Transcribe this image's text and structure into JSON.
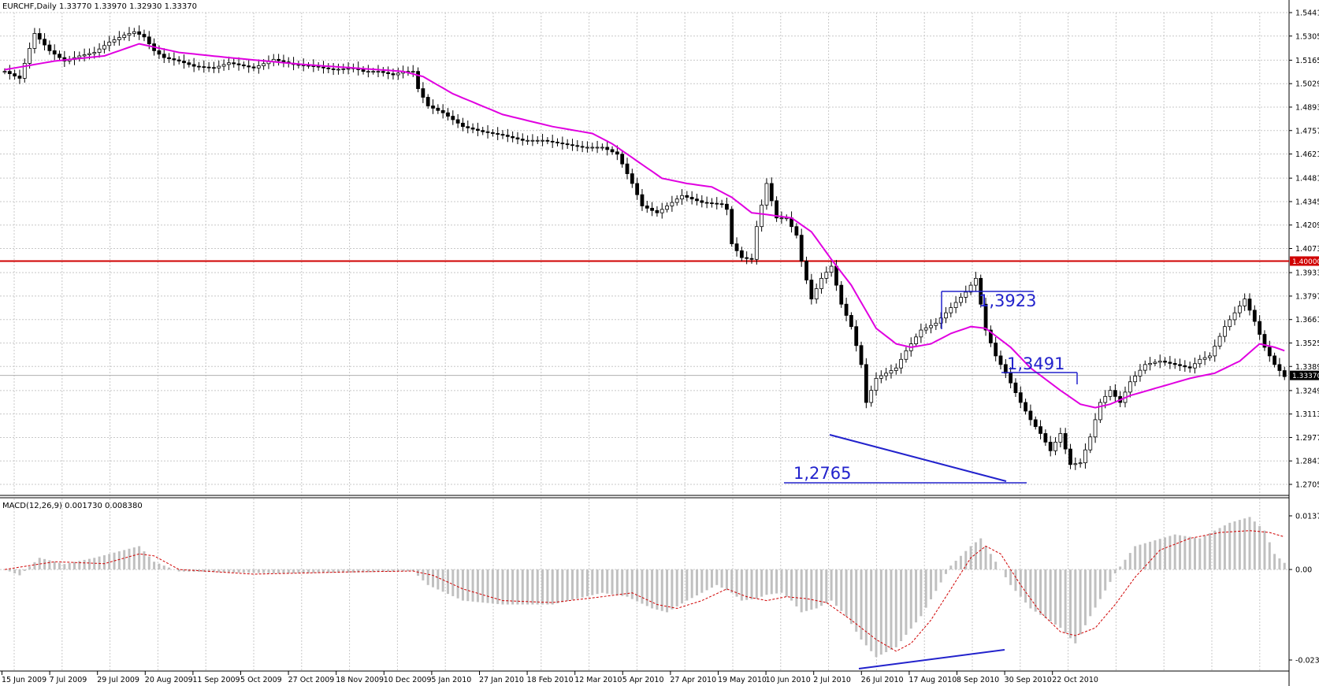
{
  "header": {
    "symbol_line": "EURCHF,Daily  1.33770 1.33970 1.32930 1.33370"
  },
  "macd": {
    "title": "MACD(12,26,9) 0.001730 0.008380"
  },
  "colors": {
    "background": "#ffffff",
    "grid": "#c0c0c0",
    "candle": "#000000",
    "ma": "#e000e0",
    "level": "#d00000",
    "annotation": "#2222cc",
    "hist": "#c0c0c0",
    "signal": "#d00000"
  },
  "annotations": {
    "high_label": "1,3923",
    "mid_label": "1,3491",
    "low_label": "1,2765"
  },
  "chart_data": [
    {
      "type": "candlestick",
      "title": "EURCHF,Daily",
      "ylim": [
        1.27,
        1.548
      ],
      "price_ticks": [
        "1.54410",
        "1.53050",
        "1.51650",
        "1.50290",
        "1.48930",
        "1.47570",
        "1.46210",
        "1.44810",
        "1.43450",
        "1.42090",
        "1.40730",
        "1.39330",
        "1.37970",
        "1.36610",
        "1.35250",
        "1.33890",
        "1.32490",
        "1.31130",
        "1.29770",
        "1.28410",
        "1.27050"
      ],
      "level_label": "1.40000",
      "current_label": "1.33370",
      "x_labels": [
        "15 Jun 2009",
        "7 Jul 2009",
        "29 Jul 2009",
        "20 Aug 2009",
        "11 Sep 2009",
        "5 Oct 2009",
        "27 Oct 2009",
        "18 Nov 2009",
        "10 Dec 2009",
        "5 Jan 2010",
        "27 Jan 2010",
        "18 Feb 2010",
        "12 Mar 2010",
        "5 Apr 2010",
        "27 Apr 2010",
        "19 May 2010",
        "10 Jun 2010",
        "2 Jul 2010",
        "26 Jul 2010",
        "17 Aug 2010",
        "8 Sep 2010",
        "30 Sep 2010",
        "22 Oct 2010"
      ],
      "close_path": [
        [
          0,
          1.51
        ],
        [
          3,
          1.506
        ],
        [
          6,
          1.532
        ],
        [
          9,
          1.522
        ],
        [
          12,
          1.516
        ],
        [
          15,
          1.519
        ],
        [
          18,
          1.521
        ],
        [
          21,
          1.527
        ],
        [
          24,
          1.531
        ],
        [
          26,
          1.533
        ],
        [
          28,
          1.53
        ],
        [
          30,
          1.522
        ],
        [
          32,
          1.518
        ],
        [
          35,
          1.516
        ],
        [
          38,
          1.513
        ],
        [
          42,
          1.512
        ],
        [
          45,
          1.515
        ],
        [
          50,
          1.512
        ],
        [
          54,
          1.517
        ],
        [
          58,
          1.514
        ],
        [
          62,
          1.513
        ],
        [
          66,
          1.511
        ],
        [
          70,
          1.512
        ],
        [
          72,
          1.51
        ],
        [
          75,
          1.51
        ],
        [
          78,
          1.508
        ],
        [
          80,
          1.51
        ],
        [
          82,
          1.51
        ],
        [
          83,
          1.5
        ],
        [
          85,
          1.49
        ],
        [
          88,
          1.486
        ],
        [
          92,
          1.478
        ],
        [
          96,
          1.475
        ],
        [
          100,
          1.473
        ],
        [
          104,
          1.47
        ],
        [
          108,
          1.47
        ],
        [
          112,
          1.468
        ],
        [
          116,
          1.466
        ],
        [
          120,
          1.466
        ],
        [
          123,
          1.462
        ],
        [
          126,
          1.445
        ],
        [
          128,
          1.432
        ],
        [
          131,
          1.428
        ],
        [
          133,
          1.432
        ],
        [
          136,
          1.438
        ],
        [
          140,
          1.434
        ],
        [
          144,
          1.433
        ],
        [
          145,
          1.43
        ],
        [
          146,
          1.41
        ],
        [
          148,
          1.402
        ],
        [
          150,
          1.401
        ],
        [
          151,
          1.42
        ],
        [
          153,
          1.445
        ],
        [
          155,
          1.425
        ],
        [
          157,
          1.425
        ],
        [
          159,
          1.415
        ],
        [
          160,
          1.4
        ],
        [
          162,
          1.378
        ],
        [
          164,
          1.39
        ],
        [
          166,
          1.397
        ],
        [
          168,
          1.375
        ],
        [
          170,
          1.362
        ],
        [
          172,
          1.34
        ],
        [
          173,
          1.318
        ],
        [
          175,
          1.332
        ],
        [
          177,
          1.335
        ],
        [
          179,
          1.338
        ],
        [
          181,
          1.348
        ],
        [
          184,
          1.36
        ],
        [
          187,
          1.364
        ],
        [
          190,
          1.373
        ],
        [
          193,
          1.382
        ],
        [
          195,
          1.39
        ],
        [
          197,
          1.36
        ],
        [
          199,
          1.345
        ],
        [
          201,
          1.335
        ],
        [
          204,
          1.318
        ],
        [
          206,
          1.308
        ],
        [
          208,
          1.3
        ],
        [
          210,
          1.29
        ],
        [
          212,
          1.3
        ],
        [
          214,
          1.282
        ],
        [
          216,
          1.283
        ],
        [
          218,
          1.298
        ],
        [
          220,
          1.318
        ],
        [
          222,
          1.325
        ],
        [
          224,
          1.318
        ],
        [
          226,
          1.33
        ],
        [
          229,
          1.34
        ],
        [
          232,
          1.342
        ],
        [
          235,
          1.34
        ],
        [
          238,
          1.338
        ],
        [
          240,
          1.343
        ],
        [
          242,
          1.345
        ],
        [
          245,
          1.362
        ],
        [
          247,
          1.37
        ],
        [
          249,
          1.378
        ],
        [
          251,
          1.365
        ],
        [
          253,
          1.35
        ],
        [
          255,
          1.34
        ],
        [
          257,
          1.333
        ]
      ],
      "ma_path": [
        [
          0,
          1.511
        ],
        [
          10,
          1.516
        ],
        [
          20,
          1.519
        ],
        [
          27,
          1.526
        ],
        [
          35,
          1.521
        ],
        [
          45,
          1.518
        ],
        [
          60,
          1.514
        ],
        [
          70,
          1.512
        ],
        [
          80,
          1.51
        ],
        [
          84,
          1.507
        ],
        [
          90,
          1.497
        ],
        [
          100,
          1.485
        ],
        [
          110,
          1.478
        ],
        [
          118,
          1.474
        ],
        [
          122,
          1.468
        ],
        [
          127,
          1.458
        ],
        [
          132,
          1.448
        ],
        [
          137,
          1.445
        ],
        [
          142,
          1.443
        ],
        [
          146,
          1.437
        ],
        [
          150,
          1.428
        ],
        [
          153,
          1.427
        ],
        [
          158,
          1.425
        ],
        [
          162,
          1.417
        ],
        [
          166,
          1.401
        ],
        [
          170,
          1.386
        ],
        [
          175,
          1.361
        ],
        [
          179,
          1.352
        ],
        [
          182,
          1.35
        ],
        [
          186,
          1.352
        ],
        [
          190,
          1.358
        ],
        [
          194,
          1.362
        ],
        [
          197,
          1.361
        ],
        [
          202,
          1.35
        ],
        [
          206,
          1.338
        ],
        [
          212,
          1.325
        ],
        [
          216,
          1.317
        ],
        [
          219,
          1.315
        ],
        [
          222,
          1.317
        ],
        [
          226,
          1.322
        ],
        [
          232,
          1.327
        ],
        [
          238,
          1.332
        ],
        [
          243,
          1.335
        ],
        [
          248,
          1.342
        ],
        [
          252,
          1.352
        ],
        [
          255,
          1.35
        ],
        [
          257,
          1.348
        ]
      ],
      "swing_labels": [
        {
          "text": "1,3923",
          "value": 1.3923
        },
        {
          "text": "1,3491",
          "value": 1.3491
        },
        {
          "text": "1,2765",
          "value": 1.2765
        }
      ],
      "level_value": 1.4,
      "current_value": 1.3337
    },
    {
      "type": "bar",
      "title": "MACD(12,26,9) 0.001730 0.008380",
      "ylim": [
        -0.02327,
        0.01378
      ],
      "y_tick_labels": [
        "0.013786",
        "0.00",
        "-0.02327"
      ],
      "hist_path": [
        [
          0,
          0.0
        ],
        [
          3,
          -0.0015
        ],
        [
          7,
          0.003
        ],
        [
          12,
          0.0014
        ],
        [
          18,
          0.003
        ],
        [
          27,
          0.006
        ],
        [
          30,
          0.002
        ],
        [
          35,
          -0.0005
        ],
        [
          55,
          -0.001
        ],
        [
          70,
          -0.0008
        ],
        [
          82,
          -0.0004
        ],
        [
          85,
          -0.004
        ],
        [
          92,
          -0.008
        ],
        [
          100,
          -0.009
        ],
        [
          110,
          -0.009
        ],
        [
          120,
          -0.006
        ],
        [
          125,
          -0.007
        ],
        [
          130,
          -0.01
        ],
        [
          133,
          -0.011
        ],
        [
          137,
          -0.008
        ],
        [
          143,
          -0.004
        ],
        [
          146,
          -0.006
        ],
        [
          148,
          -0.008
        ],
        [
          151,
          -0.0075
        ],
        [
          153,
          -0.0065
        ],
        [
          156,
          -0.006
        ],
        [
          158,
          -0.008
        ],
        [
          160,
          -0.011
        ],
        [
          163,
          -0.01
        ],
        [
          166,
          -0.008
        ],
        [
          169,
          -0.012
        ],
        [
          172,
          -0.018
        ],
        [
          175,
          -0.0225
        ],
        [
          179,
          -0.02
        ],
        [
          184,
          -0.012
        ],
        [
          190,
          0.001
        ],
        [
          194,
          0.006
        ],
        [
          196,
          0.008
        ],
        [
          198,
          0.004
        ],
        [
          202,
          -0.004
        ],
        [
          206,
          -0.01
        ],
        [
          212,
          -0.015
        ],
        [
          215,
          -0.019
        ],
        [
          218,
          -0.012
        ],
        [
          223,
          -0.001
        ],
        [
          227,
          0.006
        ],
        [
          235,
          0.009
        ],
        [
          240,
          0.008
        ],
        [
          246,
          0.012
        ],
        [
          250,
          0.0135
        ],
        [
          253,
          0.01
        ],
        [
          255,
          0.004
        ],
        [
          257,
          0.0017
        ]
      ],
      "signal_path": [
        [
          0,
          0.0
        ],
        [
          10,
          0.002
        ],
        [
          20,
          0.0015
        ],
        [
          27,
          0.004
        ],
        [
          30,
          0.0035
        ],
        [
          35,
          0.0
        ],
        [
          50,
          -0.0012
        ],
        [
          70,
          -0.0006
        ],
        [
          82,
          -0.0004
        ],
        [
          86,
          -0.0015
        ],
        [
          92,
          -0.005
        ],
        [
          100,
          -0.008
        ],
        [
          110,
          -0.0085
        ],
        [
          120,
          -0.007
        ],
        [
          126,
          -0.006
        ],
        [
          131,
          -0.009
        ],
        [
          135,
          -0.01
        ],
        [
          140,
          -0.008
        ],
        [
          145,
          -0.005
        ],
        [
          149,
          -0.007
        ],
        [
          153,
          -0.008
        ],
        [
          157,
          -0.007
        ],
        [
          161,
          -0.0075
        ],
        [
          165,
          -0.0085
        ],
        [
          170,
          -0.013
        ],
        [
          175,
          -0.018
        ],
        [
          179,
          -0.021
        ],
        [
          182,
          -0.019
        ],
        [
          186,
          -0.013
        ],
        [
          190,
          -0.005
        ],
        [
          194,
          0.003
        ],
        [
          197,
          0.006
        ],
        [
          200,
          0.004
        ],
        [
          204,
          -0.004
        ],
        [
          208,
          -0.011
        ],
        [
          212,
          -0.016
        ],
        [
          215,
          -0.017
        ],
        [
          219,
          -0.015
        ],
        [
          223,
          -0.009
        ],
        [
          227,
          -0.002
        ],
        [
          232,
          0.005
        ],
        [
          238,
          0.008
        ],
        [
          244,
          0.0095
        ],
        [
          250,
          0.01
        ],
        [
          254,
          0.0095
        ],
        [
          257,
          0.0084
        ]
      ]
    }
  ]
}
